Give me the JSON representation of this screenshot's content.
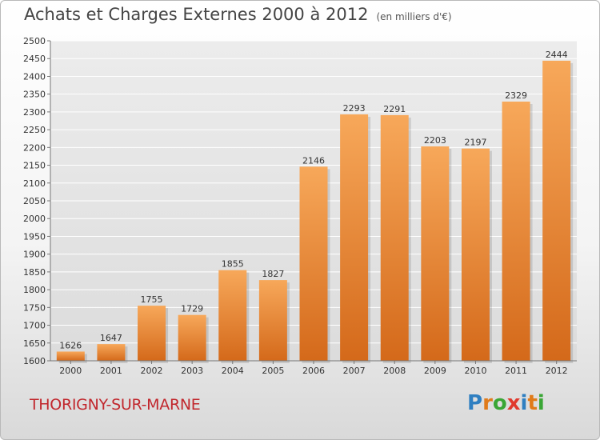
{
  "title": "Achats et Charges Externes 2000 à 2012",
  "subtitle": "(en milliers d'€)",
  "commune": "THORIGNY-SUR-MARNE",
  "logo": {
    "letters": [
      "P",
      "r",
      "o",
      "x",
      "i",
      "t",
      "i"
    ],
    "colors": [
      "#2f7fc1",
      "#e07b1a",
      "#3aa635",
      "#e03a2e",
      "#2f7fc1",
      "#e07b1a",
      "#3aa635"
    ]
  },
  "colors": {
    "bar_top": "#f7a85a",
    "bar_bottom": "#d4691a",
    "grid": "#ffffff",
    "plot_bg": "#e6e6e6",
    "title_color": "#444444",
    "commune_color": "#c1272d"
  },
  "chart_data": {
    "type": "bar",
    "categories": [
      "2000",
      "2001",
      "2002",
      "2003",
      "2004",
      "2005",
      "2006",
      "2007",
      "2008",
      "2009",
      "2010",
      "2011",
      "2012"
    ],
    "values": [
      1626,
      1647,
      1755,
      1729,
      1855,
      1827,
      2146,
      2293,
      2291,
      2203,
      2197,
      2329,
      2444
    ],
    "ylim": [
      1600,
      2500
    ],
    "yticks": [
      1600,
      1650,
      1700,
      1750,
      1800,
      1850,
      1900,
      1950,
      2000,
      2050,
      2100,
      2150,
      2200,
      2250,
      2300,
      2350,
      2400,
      2450,
      2500
    ],
    "grid": true,
    "data_labels": true
  }
}
